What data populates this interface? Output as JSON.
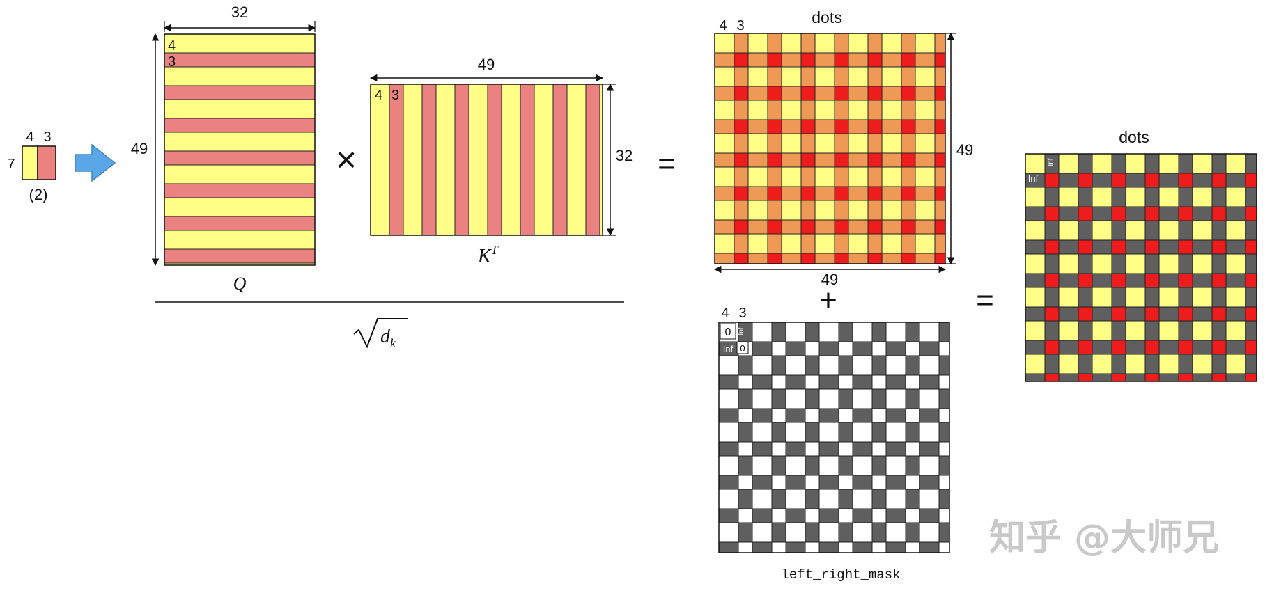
{
  "colors": {
    "yellow": "#ffff88",
    "q_red": "#eb8282",
    "dots_orange": "#ee9955",
    "dots_red": "#ee1c1c",
    "mask_gray": "#5f5f5f",
    "white": "#ffffff",
    "arrow_blue": "#5aa6e6"
  },
  "input": {
    "rows": "7",
    "col_a": "4",
    "col_b": "3",
    "caption": "(2)"
  },
  "q": {
    "width": "32",
    "height": "49",
    "label_a": "4",
    "label_b": "3",
    "name": "Q"
  },
  "kt": {
    "width": "49",
    "height": "32",
    "label_a": "4",
    "label_b": "3",
    "name": "K",
    "sup": "T"
  },
  "ops": {
    "times": "×",
    "equals1": "=",
    "plus": "+",
    "equals2": "="
  },
  "denominator": "d",
  "denominator_sub": "k",
  "dots": {
    "title": "dots",
    "col_a": "4",
    "col_b": "3",
    "height": "49",
    "width": "49"
  },
  "mask": {
    "col_a": "4",
    "col_b": "3",
    "zero": "0",
    "inf": "Inf",
    "inf_rot": "Inf",
    "zero2": "0",
    "caption": "left_right_mask"
  },
  "result": {
    "title": "dots",
    "inf": "Inf",
    "inf_rot": "Inf"
  },
  "watermark": "知乎 @大师兄"
}
